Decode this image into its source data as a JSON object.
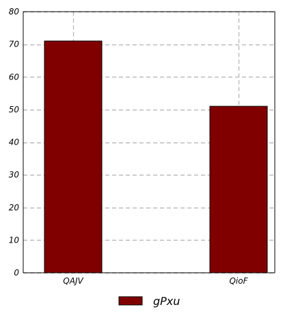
{
  "chart_data": {
    "type": "bar",
    "categories": [
      "QAJV",
      "QioF"
    ],
    "series": [
      {
        "name": "gPxu",
        "values": [
          71,
          51
        ],
        "color": "#800000"
      }
    ],
    "yticks": [
      "0",
      "10",
      "20",
      "30",
      "40",
      "50",
      "60",
      "70",
      "80"
    ],
    "ylim": [
      0,
      80
    ],
    "grid": true,
    "legend_position": "bottom-center"
  }
}
